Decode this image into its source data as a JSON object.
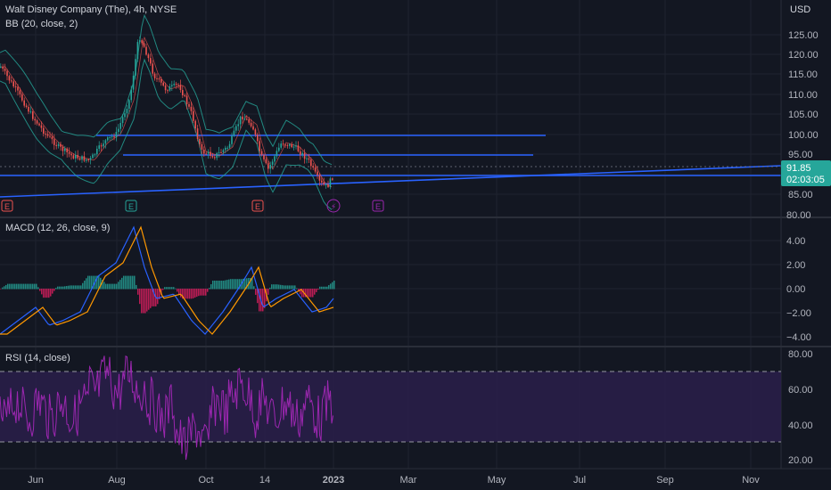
{
  "header": {
    "title": "Walt Disney Company (The), 4h, NYSE",
    "bb_label": "BB (20, close, 2)",
    "currency": "USD"
  },
  "price_pane": {
    "ticks": [
      "125.00",
      "120.00",
      "115.00",
      "110.00",
      "105.00",
      "100.00",
      "95.00",
      "90.00",
      "85.00",
      "80.00"
    ],
    "last_price": "91.85",
    "countdown": "02:03:05",
    "cut_label": "80.00",
    "last_color": "#26a69a"
  },
  "macd_pane": {
    "label": "MACD (12, 26, close, 9)",
    "ticks": [
      "4.00",
      "2.00",
      "0.00",
      "−2.00",
      "−4.00"
    ]
  },
  "rsi_pane": {
    "label": "RSI (14, close)",
    "ticks": [
      "80.00",
      "60.00",
      "40.00",
      "20.00"
    ],
    "band_color": "#2a1e4a",
    "line_color": "#9c27b0"
  },
  "events": [
    {
      "type": "earnings",
      "text": "E",
      "color": "#ef5350"
    },
    {
      "type": "earnings",
      "text": "E",
      "color": "#26a69a"
    },
    {
      "type": "earnings",
      "text": "E",
      "color": "#ef5350"
    },
    {
      "type": "dividend",
      "text": "⚡",
      "color": "#9c27b0"
    },
    {
      "type": "earnings",
      "text": "E",
      "color": "#9c27b0"
    }
  ],
  "time_axis": [
    "Jun",
    "Aug",
    "Oct",
    "14",
    "2023",
    "Mar",
    "May",
    "Jul",
    "Sep",
    "Nov"
  ],
  "colors": {
    "background": "#131722",
    "grid": "#1f2330",
    "trendline": "#2962ff",
    "bb_band": "#26a69a",
    "bb_basis": "#ef5350",
    "up": "#26a69a",
    "down": "#ef5350",
    "macd": "#2962ff",
    "signal": "#ff9800"
  }
}
